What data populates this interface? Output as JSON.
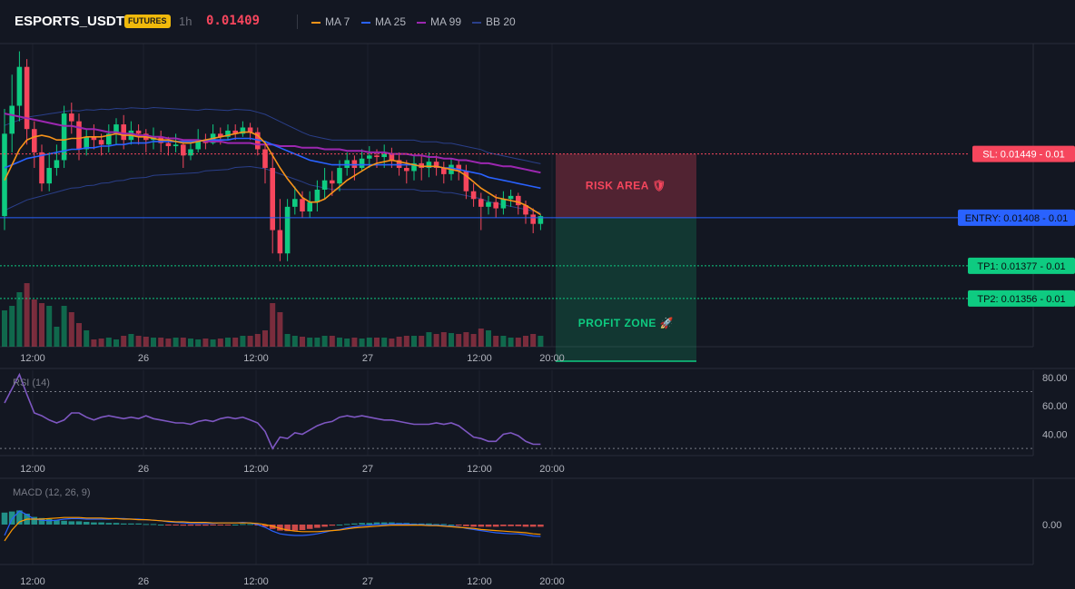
{
  "header": {
    "symbol": "ESPORTS_USDT",
    "badge": "FUTURES",
    "timeframe": "1h",
    "last_price": "0.01409",
    "legend": [
      {
        "label": "MA 7",
        "color": "#f7931a"
      },
      {
        "label": "MA 25",
        "color": "#2962ff"
      },
      {
        "label": "MA 99",
        "color": "#9c27b0"
      },
      {
        "label": "BB 20",
        "color": "#2a3f8a"
      }
    ]
  },
  "colors": {
    "up": "#0ecb81",
    "down": "#f6465d",
    "bg": "#131722"
  },
  "chart_data": [
    {
      "type": "candlestick",
      "x_ticks": [
        "12:00",
        "26",
        "12:00",
        "27",
        "12:00",
        "20:00"
      ],
      "ylim": [
        0.01325,
        0.0152
      ],
      "levels": [
        {
          "label": "SL: 0.01449 - 0.01",
          "value": 0.01449,
          "color": "#f6465d"
        },
        {
          "label": "ENTRY: 0.01408 - 0.01",
          "value": 0.01408,
          "color": "#2962ff"
        },
        {
          "label": "TP1: 0.01377 - 0.01",
          "value": 0.01377,
          "color": "#0ecb81"
        },
        {
          "label": "TP2: 0.01356 - 0.01",
          "value": 0.01356,
          "color": "#0ecb81"
        }
      ],
      "zones": {
        "risk_label": "RISK AREA 🛡",
        "profit_label": "PROFIT ZONE 🚀"
      },
      "candles": [
        [
          0.01409,
          0.01462,
          0.01478,
          0.014
        ],
        [
          0.01462,
          0.0148,
          0.015,
          0.0145
        ],
        [
          0.0148,
          0.01505,
          0.01515,
          0.0147
        ],
        [
          0.01505,
          0.01465,
          0.0151,
          0.01455
        ],
        [
          0.01465,
          0.0145,
          0.0147,
          0.0144
        ],
        [
          0.0145,
          0.0143,
          0.01455,
          0.01425
        ],
        [
          0.0143,
          0.0144,
          0.0145,
          0.01425
        ],
        [
          0.0144,
          0.01445,
          0.01455,
          0.01435
        ],
        [
          0.01445,
          0.01475,
          0.0148,
          0.0144
        ],
        [
          0.01475,
          0.0147,
          0.01482,
          0.01462
        ],
        [
          0.0147,
          0.01452,
          0.01475,
          0.01445
        ],
        [
          0.01452,
          0.0146,
          0.01465,
          0.01448
        ],
        [
          0.0146,
          0.01458,
          0.01468,
          0.01452
        ],
        [
          0.01458,
          0.01455,
          0.01462,
          0.01448
        ],
        [
          0.01455,
          0.01462,
          0.01468,
          0.0145
        ],
        [
          0.01462,
          0.01468,
          0.01472,
          0.01455
        ],
        [
          0.01468,
          0.01458,
          0.01474,
          0.01452
        ],
        [
          0.01458,
          0.01464,
          0.0147,
          0.01455
        ],
        [
          0.01464,
          0.01462,
          0.01468,
          0.01455
        ],
        [
          0.01462,
          0.01458,
          0.01465,
          0.0145
        ],
        [
          0.01458,
          0.0146,
          0.01466,
          0.01452
        ],
        [
          0.0146,
          0.01456,
          0.01464,
          0.0145
        ],
        [
          0.01456,
          0.01454,
          0.0146,
          0.01448
        ],
        [
          0.01454,
          0.01455,
          0.01462,
          0.0145
        ],
        [
          0.01455,
          0.01448,
          0.01458,
          0.0144
        ],
        [
          0.01448,
          0.01452,
          0.01456,
          0.01445
        ],
        [
          0.01452,
          0.01458,
          0.01465,
          0.0145
        ],
        [
          0.01458,
          0.01456,
          0.01462,
          0.01452
        ],
        [
          0.01456,
          0.01462,
          0.01468,
          0.01455
        ],
        [
          0.01462,
          0.0146,
          0.01466,
          0.01455
        ],
        [
          0.0146,
          0.01464,
          0.01468,
          0.01458
        ],
        [
          0.01464,
          0.01462,
          0.01468,
          0.01458
        ],
        [
          0.01462,
          0.01466,
          0.0147,
          0.0146
        ],
        [
          0.01466,
          0.01463,
          0.01469,
          0.01458
        ],
        [
          0.01463,
          0.01452,
          0.01466,
          0.01448
        ],
        [
          0.01452,
          0.0144,
          0.01455,
          0.0143
        ],
        [
          0.0144,
          0.014,
          0.0145,
          0.01385
        ],
        [
          0.014,
          0.01385,
          0.0142,
          0.0138
        ],
        [
          0.01385,
          0.01415,
          0.0142,
          0.0138
        ],
        [
          0.01415,
          0.0142,
          0.01428,
          0.0141
        ],
        [
          0.0142,
          0.01412,
          0.01425,
          0.01408
        ],
        [
          0.01412,
          0.01418,
          0.01425,
          0.01408
        ],
        [
          0.01418,
          0.01426,
          0.01432,
          0.01412
        ],
        [
          0.01426,
          0.01432,
          0.0144,
          0.0142
        ],
        [
          0.01432,
          0.0143,
          0.01438,
          0.01422
        ],
        [
          0.0143,
          0.0144,
          0.01445,
          0.01425
        ],
        [
          0.0144,
          0.01445,
          0.0145,
          0.01435
        ],
        [
          0.01445,
          0.0144,
          0.01448,
          0.01432
        ],
        [
          0.0144,
          0.01446,
          0.01452,
          0.01438
        ],
        [
          0.01446,
          0.01448,
          0.01454,
          0.0144
        ],
        [
          0.01448,
          0.01447,
          0.01452,
          0.0144
        ],
        [
          0.01447,
          0.01449,
          0.01455,
          0.0144
        ],
        [
          0.01449,
          0.01445,
          0.01453,
          0.0144
        ],
        [
          0.01445,
          0.0144,
          0.0145,
          0.01435
        ],
        [
          0.0144,
          0.01438,
          0.01445,
          0.0143
        ],
        [
          0.01438,
          0.01443,
          0.01448,
          0.01432
        ],
        [
          0.01443,
          0.0144,
          0.01448,
          0.01432
        ],
        [
          0.0144,
          0.01444,
          0.0145,
          0.01434
        ],
        [
          0.01444,
          0.0144,
          0.01448,
          0.01435
        ],
        [
          0.0144,
          0.01436,
          0.01444,
          0.0143
        ],
        [
          0.01436,
          0.01442,
          0.01446,
          0.01432
        ],
        [
          0.01442,
          0.01438,
          0.01445,
          0.01432
        ],
        [
          0.01438,
          0.01425,
          0.01442,
          0.0142
        ],
        [
          0.01425,
          0.0142,
          0.0143,
          0.01415
        ],
        [
          0.0142,
          0.01415,
          0.01424,
          0.014
        ],
        [
          0.01415,
          0.01418,
          0.01422,
          0.0141
        ],
        [
          0.01418,
          0.01414,
          0.01423,
          0.01408
        ],
        [
          0.01414,
          0.0142,
          0.01425,
          0.0141
        ],
        [
          0.0142,
          0.01422,
          0.01426,
          0.01415
        ],
        [
          0.01422,
          0.01416,
          0.01424,
          0.0141
        ],
        [
          0.01416,
          0.0141,
          0.01419,
          0.01404
        ],
        [
          0.0141,
          0.01404,
          0.01414,
          0.01398
        ],
        [
          0.01404,
          0.01409,
          0.0141,
          0.014
        ]
      ],
      "ma7": [
        0.01432,
        0.01442,
        0.01452,
        0.01458,
        0.0146,
        0.01461,
        0.0146,
        0.01458,
        0.01458,
        0.01459,
        0.01459,
        0.0146,
        0.0146,
        0.0146,
        0.01461,
        0.01462,
        0.01461,
        0.01461,
        0.0146,
        0.0146,
        0.01459,
        0.01458,
        0.01458,
        0.01457,
        0.01456,
        0.01456,
        0.01457,
        0.01458,
        0.01459,
        0.0146,
        0.01461,
        0.01462,
        0.01463,
        0.01463,
        0.01461,
        0.01456,
        0.01448,
        0.0144,
        0.01433,
        0.01427,
        0.01421,
        0.01418,
        0.01418,
        0.0142,
        0.01424,
        0.01428,
        0.01432,
        0.01435,
        0.01438,
        0.01441,
        0.01443,
        0.01444,
        0.01445,
        0.01444,
        0.01443,
        0.01442,
        0.01441,
        0.01441,
        0.01441,
        0.0144,
        0.01439,
        0.01438,
        0.01435,
        0.01431,
        0.01427,
        0.01424,
        0.01421,
        0.0142,
        0.01419,
        0.01418,
        0.01416,
        0.01413,
        0.0141
      ],
      "ma25": [
        0.0144,
        0.01442,
        0.01444,
        0.01446,
        0.01447,
        0.01448,
        0.01449,
        0.0145,
        0.01451,
        0.01452,
        0.01452,
        0.01453,
        0.01453,
        0.01454,
        0.01454,
        0.01455,
        0.01455,
        0.01456,
        0.01456,
        0.01456,
        0.01457,
        0.01457,
        0.01457,
        0.01457,
        0.01457,
        0.01457,
        0.01457,
        0.01458,
        0.01458,
        0.01458,
        0.01458,
        0.01459,
        0.01459,
        0.01459,
        0.01458,
        0.01457,
        0.01455,
        0.01453,
        0.01451,
        0.01449,
        0.01447,
        0.01445,
        0.01444,
        0.01443,
        0.01442,
        0.01442,
        0.01442,
        0.01442,
        0.01442,
        0.01442,
        0.01442,
        0.01442,
        0.01442,
        0.01442,
        0.01442,
        0.01442,
        0.01441,
        0.01441,
        0.01441,
        0.0144,
        0.0144,
        0.01439,
        0.01438,
        0.01437,
        0.01436,
        0.01434,
        0.01433,
        0.01432,
        0.01431,
        0.0143,
        0.01429,
        0.01428,
        0.01427
      ],
      "ma99": [
        0.01475,
        0.01474,
        0.01473,
        0.01472,
        0.01471,
        0.0147,
        0.01469,
        0.01468,
        0.01467,
        0.01467,
        0.01466,
        0.01465,
        0.01465,
        0.01464,
        0.01463,
        0.01463,
        0.01462,
        0.01462,
        0.01461,
        0.01461,
        0.0146,
        0.0146,
        0.01459,
        0.01459,
        0.01458,
        0.01458,
        0.01458,
        0.01457,
        0.01457,
        0.01457,
        0.01456,
        0.01456,
        0.01456,
        0.01456,
        0.01455,
        0.01455,
        0.01455,
        0.01454,
        0.01454,
        0.01454,
        0.01453,
        0.01453,
        0.01453,
        0.01452,
        0.01452,
        0.01452,
        0.01451,
        0.01451,
        0.01451,
        0.0145,
        0.0145,
        0.0145,
        0.01449,
        0.01449,
        0.01449,
        0.01448,
        0.01448,
        0.01447,
        0.01447,
        0.01446,
        0.01446,
        0.01445,
        0.01445,
        0.01444,
        0.01443,
        0.01443,
        0.01442,
        0.01441,
        0.01441,
        0.0144,
        0.01439,
        0.01438,
        0.01437
      ],
      "volume": [
        40,
        45,
        60,
        70,
        52,
        48,
        45,
        22,
        45,
        38,
        26,
        18,
        8,
        9,
        10,
        8,
        12,
        14,
        12,
        11,
        10,
        10,
        9,
        10,
        10,
        9,
        8,
        9,
        8,
        9,
        10,
        10,
        12,
        12,
        14,
        18,
        48,
        38,
        14,
        12,
        11,
        10,
        10,
        12,
        12,
        10,
        9,
        10,
        9,
        10,
        10,
        10,
        9,
        11,
        12,
        12,
        12,
        16,
        14,
        16,
        15,
        14,
        16,
        14,
        20,
        18,
        12,
        12,
        10,
        10,
        12,
        14,
        12
      ]
    },
    {
      "type": "line",
      "title": "RSI (14)",
      "ylim": [
        25,
        85
      ],
      "y_ticks": [
        "80.00",
        "60.00",
        "40.00"
      ],
      "levels": [
        70,
        30
      ],
      "x_ticks": [
        "12:00",
        "26",
        "12:00",
        "27",
        "12:00",
        "20:00"
      ],
      "values": [
        62,
        72,
        82,
        68,
        55,
        53,
        50,
        48,
        50,
        55,
        55,
        52,
        50,
        52,
        53,
        52,
        51,
        52,
        51,
        53,
        51,
        50,
        49,
        48,
        48,
        47,
        49,
        50,
        49,
        51,
        52,
        51,
        52,
        50,
        48,
        42,
        30,
        38,
        37,
        41,
        40,
        43,
        46,
        48,
        49,
        52,
        53,
        52,
        53,
        52,
        51,
        50,
        50,
        49,
        48,
        47,
        47,
        47,
        48,
        47,
        48,
        46,
        42,
        38,
        37,
        35,
        35,
        40,
        41,
        39,
        35,
        33,
        33
      ]
    },
    {
      "type": "bar",
      "title": "MACD (12, 26, 9)",
      "y_ticks": [
        "0.00"
      ],
      "x_ticks": [
        "12:00",
        "26",
        "12:00",
        "27",
        "12:00",
        "20:00"
      ],
      "histogram": [
        0.00022,
        0.00024,
        0.00026,
        0.0002,
        0.00014,
        0.00012,
        0.0001,
        8e-05,
        7e-05,
        6e-05,
        6e-05,
        5e-05,
        4e-05,
        4e-05,
        3e-05,
        3e-05,
        2e-05,
        2e-05,
        2e-05,
        1e-05,
        1e-05,
        0.0,
        -1e-05,
        -1e-05,
        -2e-05,
        -2e-05,
        -2e-05,
        -2e-05,
        -1e-05,
        -1e-05,
        -1e-05,
        0.0,
        1e-05,
        1e-05,
        -1e-05,
        -4e-05,
        -8e-05,
        -0.00011,
        -0.00012,
        -0.00011,
        -0.0001,
        -8e-05,
        -6e-05,
        -4e-05,
        -2e-05,
        0.0,
        1e-05,
        2e-05,
        3e-05,
        3e-05,
        4e-05,
        4e-05,
        4e-05,
        3e-05,
        3e-05,
        2e-05,
        2e-05,
        2e-05,
        1e-05,
        1e-05,
        0.0,
        -1e-05,
        -3e-05,
        -4e-05,
        -4e-05,
        -4e-05,
        -4e-05,
        -3e-05,
        -3e-05,
        -3e-05,
        -4e-05,
        -4e-05,
        -4e-05
      ],
      "macd": [
        -0.0002,
        0.0001,
        0.00025,
        0.00018,
        0.0001,
        8e-05,
        7e-05,
        8e-05,
        0.0001,
        0.00011,
        0.00011,
        0.0001,
        0.0001,
        0.0001,
        0.0001,
        0.00011,
        0.00011,
        0.0001,
        0.0001,
        9e-05,
        8e-05,
        7e-05,
        5e-05,
        4e-05,
        3e-05,
        2e-05,
        2e-05,
        2e-05,
        2e-05,
        3e-05,
        3e-05,
        3e-05,
        4e-05,
        3e-05,
        0.0,
        -5e-05,
        -0.00012,
        -0.00017,
        -0.00019,
        -0.0002,
        -0.0002,
        -0.00019,
        -0.00017,
        -0.00014,
        -0.00011,
        -9e-05,
        -6e-05,
        -4e-05,
        -2e-05,
        -1e-05,
        0.0,
        0.0,
        1e-05,
        1e-05,
        1e-05,
        0.0,
        0.0,
        -1e-05,
        -1e-05,
        -2e-05,
        -3e-05,
        -4e-05,
        -7e-05,
        -9e-05,
        -0.00011,
        -0.00013,
        -0.00015,
        -0.00016,
        -0.00017,
        -0.00017,
        -0.00019,
        -0.00021,
        -0.00022
      ],
      "signal": [
        -0.0003,
        -0.0001,
        5e-05,
        0.0001,
        0.0001,
        0.0001,
        0.00011,
        0.00012,
        0.00013,
        0.00013,
        0.00013,
        0.00012,
        0.00012,
        0.00012,
        0.00011,
        0.00011,
        0.0001,
        0.0001,
        9e-05,
        9e-05,
        8e-05,
        7e-05,
        6e-05,
        5e-05,
        5e-05,
        4e-05,
        4e-05,
        4e-05,
        3e-05,
        3e-05,
        3e-05,
        3e-05,
        3e-05,
        3e-05,
        2e-05,
        0.0,
        -3e-05,
        -7e-05,
        -0.0001,
        -0.00012,
        -0.00013,
        -0.00013,
        -0.00013,
        -0.00012,
        -0.00011,
        -0.0001,
        -8e-05,
        -6e-05,
        -5e-05,
        -4e-05,
        -3e-05,
        -2e-05,
        -1e-05,
        -1e-05,
        -1e-05,
        -1e-05,
        -1e-05,
        -2e-05,
        -2e-05,
        -3e-05,
        -4e-05,
        -5e-05,
        -6e-05,
        -7e-05,
        -9e-05,
        -0.0001,
        -0.00011,
        -0.00012,
        -0.00013,
        -0.00014,
        -0.00015,
        -0.00017,
        -0.00018
      ]
    }
  ]
}
